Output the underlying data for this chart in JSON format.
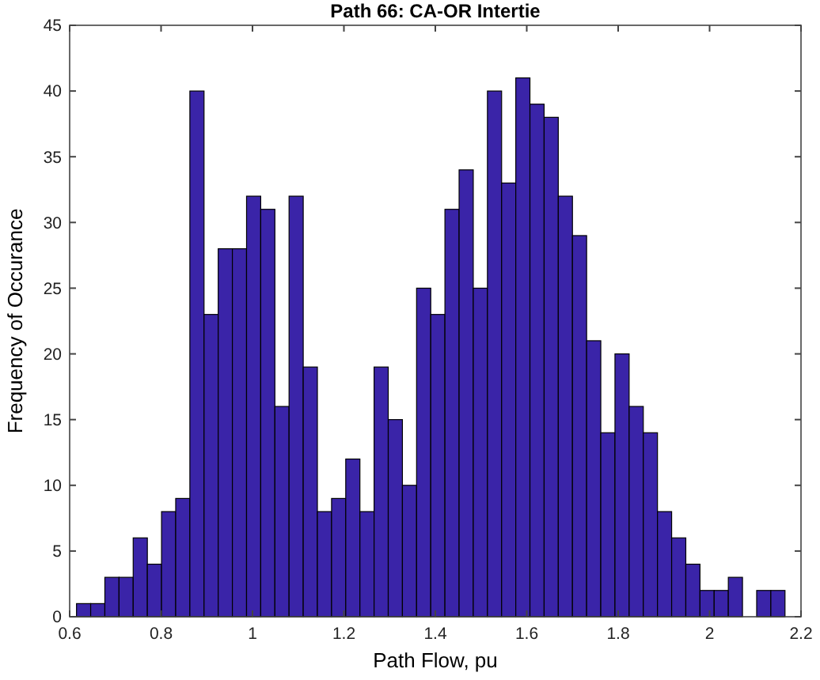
{
  "chart_data": {
    "type": "histogram",
    "title": "Path 66: CA-OR Intertie",
    "xlabel": "Path Flow, pu",
    "ylabel": "Frequency of Occurance",
    "bins": [
      0.615,
      0.646,
      0.677,
      0.708,
      0.739,
      0.77,
      0.801,
      0.832,
      0.863,
      0.894,
      0.925,
      0.956,
      0.987,
      1.018,
      1.049,
      1.08,
      1.111,
      1.142,
      1.173,
      1.204,
      1.235,
      1.266,
      1.297,
      1.328,
      1.359,
      1.39,
      1.421,
      1.452,
      1.483,
      1.514,
      1.545,
      1.576,
      1.607,
      1.638,
      1.669,
      1.7,
      1.731,
      1.762,
      1.793,
      1.824,
      1.855,
      1.886,
      1.917,
      1.948,
      1.979,
      2.01,
      2.041,
      2.072,
      2.103,
      2.134,
      2.165
    ],
    "values": [
      1,
      1,
      3,
      3,
      6,
      4,
      8,
      9,
      40,
      23,
      28,
      28,
      32,
      31,
      16,
      32,
      19,
      8,
      9,
      12,
      8,
      19,
      15,
      10,
      25,
      23,
      31,
      34,
      25,
      40,
      33,
      41,
      39,
      38,
      32,
      29,
      21,
      14,
      20,
      16,
      14,
      8,
      6,
      4,
      2,
      2,
      3,
      0,
      2,
      2
    ],
    "color": "#3a24a8",
    "xlim": [
      0.6,
      2.2
    ],
    "xticks": [
      0.6,
      0.8,
      {
        "value": 1,
        "label": "1"
      },
      1.2,
      1.4,
      1.6,
      1.8,
      {
        "value": 2,
        "label": "2"
      },
      2.2
    ],
    "ylim": [
      0,
      45
    ],
    "yticks": [
      0,
      5,
      10,
      15,
      20,
      25,
      30,
      35,
      40,
      45
    ],
    "grid": false
  }
}
